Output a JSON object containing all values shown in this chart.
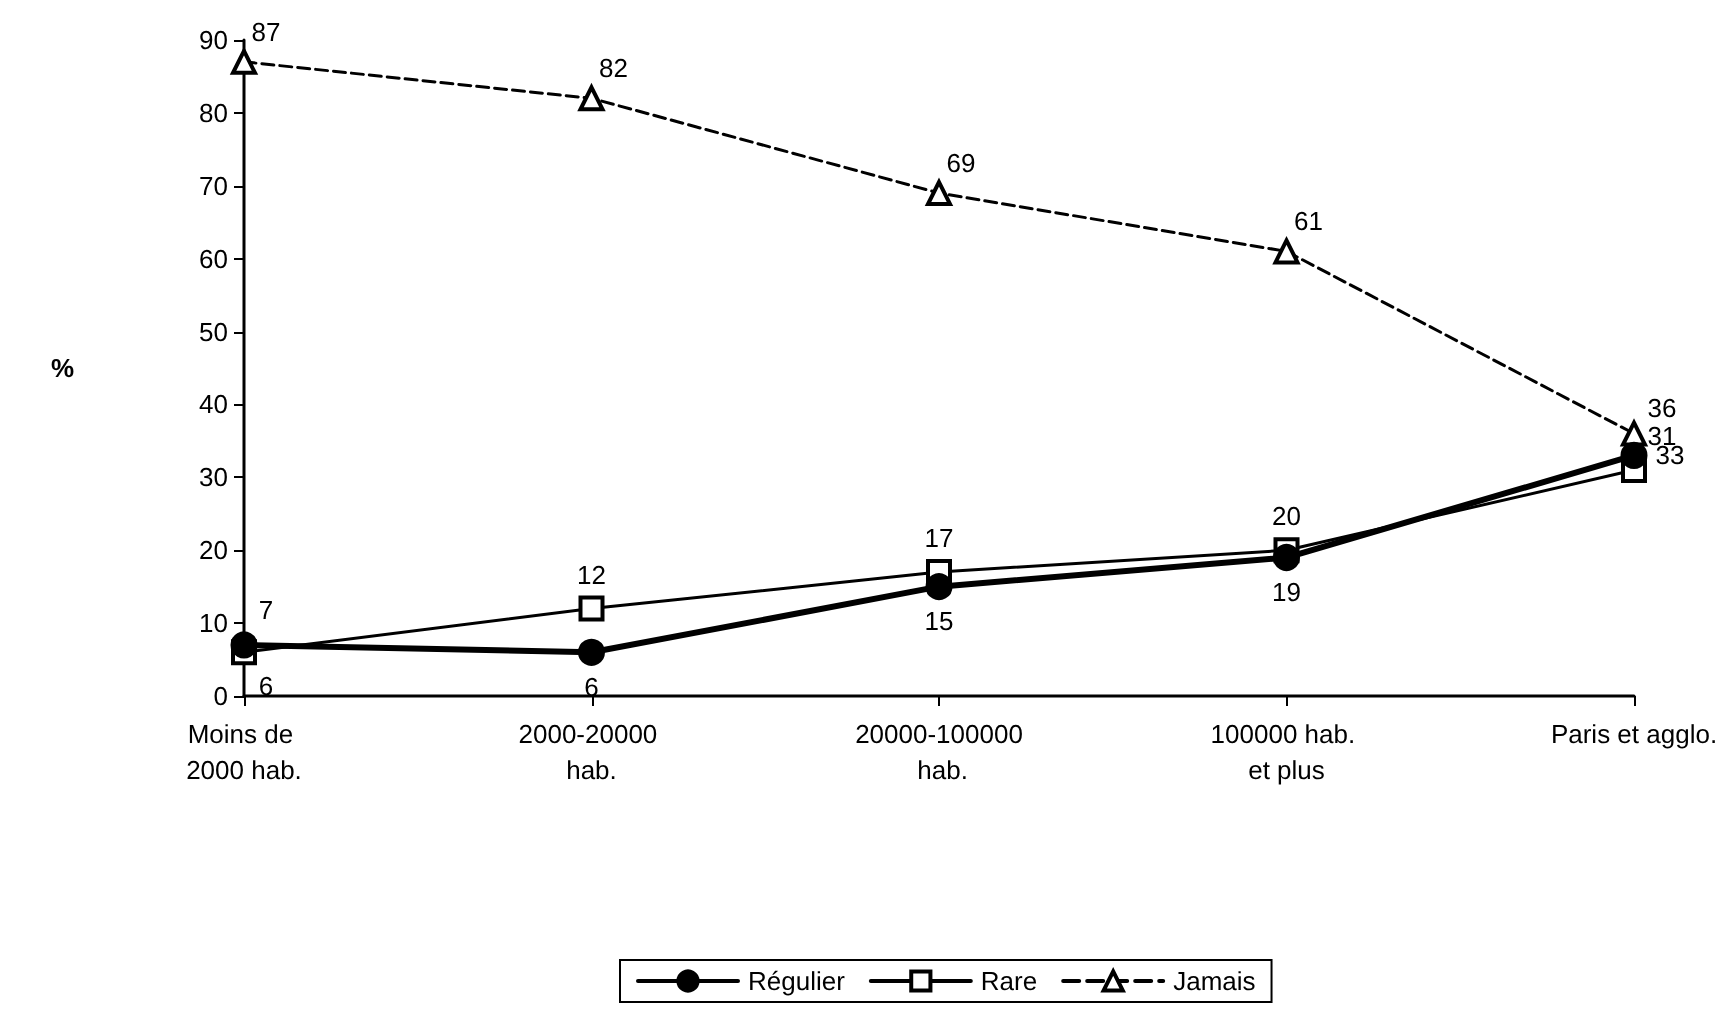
{
  "chart_data": {
    "type": "line",
    "ylabel": "%",
    "categories": [
      "Moins de 2000 hab.",
      "2000-20000 hab.",
      "20000-100000 hab.",
      "100000 hab. et plus",
      "Paris et agglo."
    ],
    "series": [
      {
        "name": "Régulier",
        "color": "#000000",
        "marker": "circle",
        "line_style": "solid",
        "values": [
          7,
          6,
          15,
          19,
          33
        ]
      },
      {
        "name": "Rare",
        "color": "#000000",
        "marker": "square",
        "line_style": "solid",
        "values": [
          6,
          12,
          17,
          20,
          31
        ]
      },
      {
        "name": "Jamais",
        "color": "#000000",
        "marker": "triangle",
        "line_style": "dashed",
        "values": [
          87,
          82,
          69,
          61,
          36
        ]
      }
    ],
    "ylim": [
      0,
      90
    ],
    "yticks": [
      0,
      10,
      20,
      30,
      40,
      50,
      60,
      70,
      80,
      90
    ],
    "grid": false,
    "legend": "bottom",
    "data_labels": true
  }
}
